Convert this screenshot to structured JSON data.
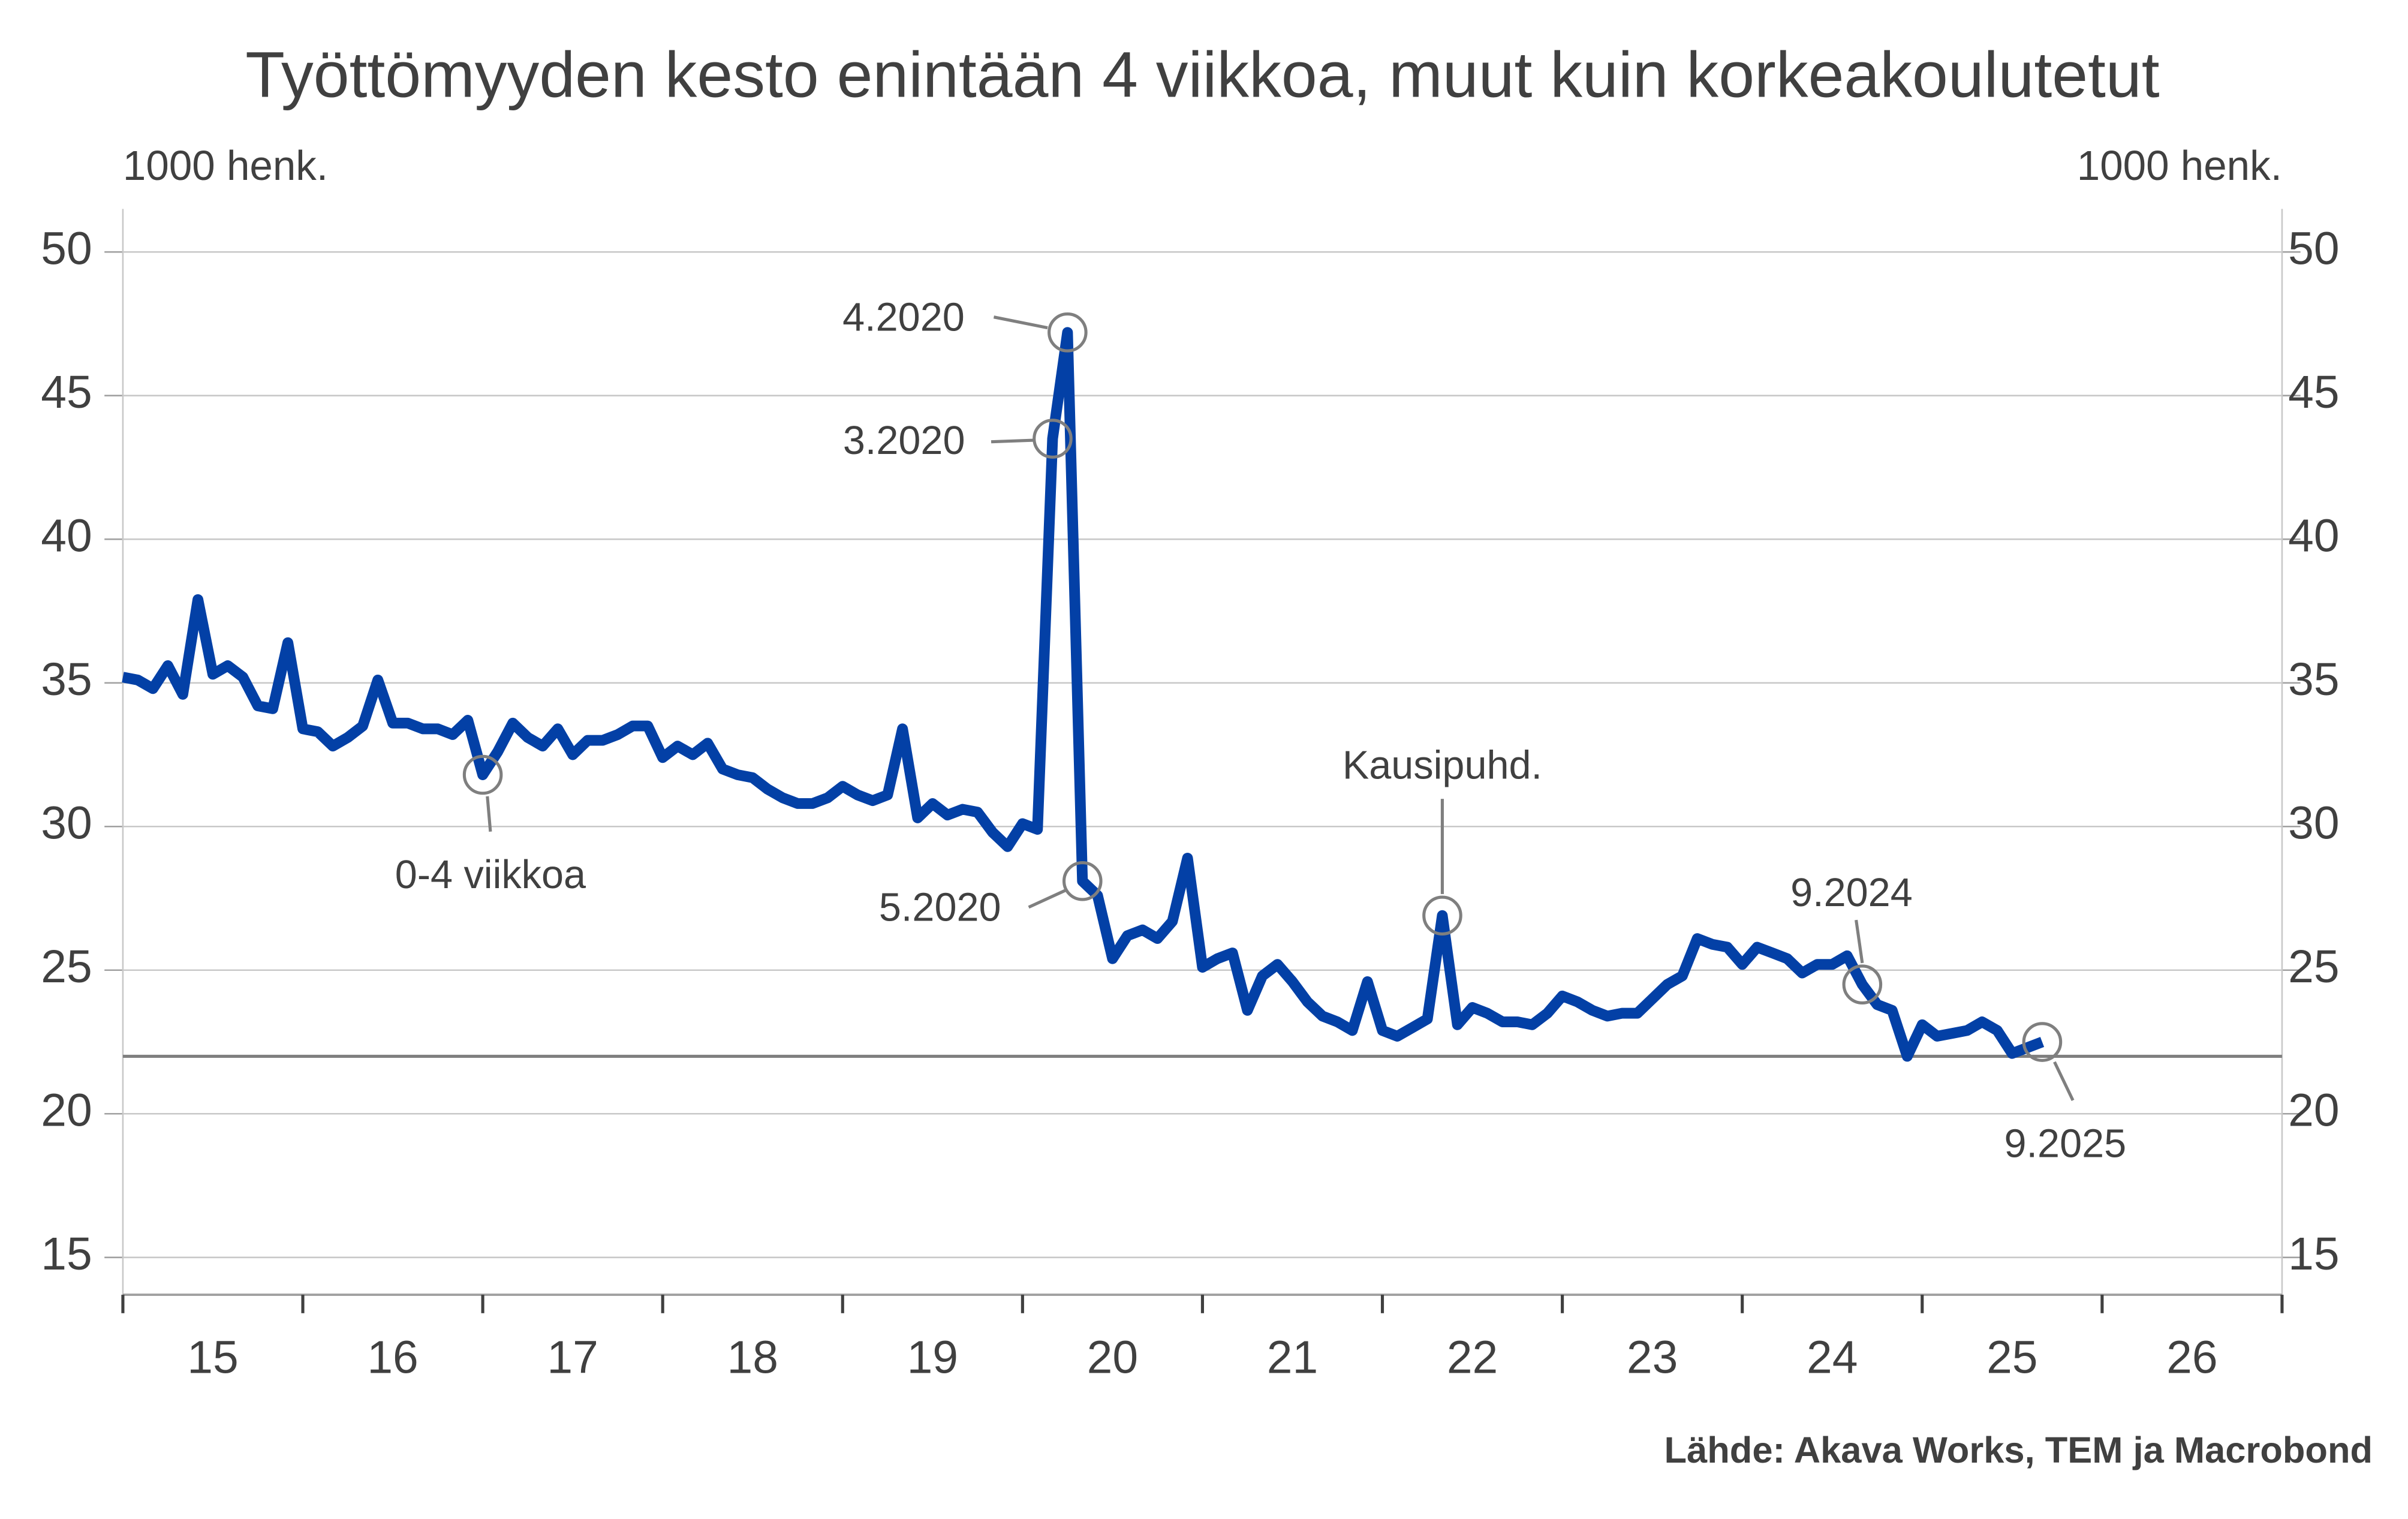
{
  "chart_data": {
    "type": "line",
    "title": "Työttömyyden kesto enintään 4 viikkoa, muut kuin korkeakoulutetut",
    "ylabel": "1000 henk.",
    "y2label": "1000 henk.",
    "source": "Lähde: Akava Works, TEM ja Macrobond",
    "x": [
      2015,
      2015.083,
      2015.167,
      2015.25,
      2015.333,
      2015.417,
      2015.5,
      2015.583,
      2015.667,
      2015.75,
      2015.833,
      2015.917,
      2016,
      2016.083,
      2016.167,
      2016.25,
      2016.333,
      2016.417,
      2016.5,
      2016.583,
      2016.667,
      2016.75,
      2016.833,
      2016.917,
      2017,
      2017.083,
      2017.167,
      2017.25,
      2017.333,
      2017.417,
      2017.5,
      2017.583,
      2017.667,
      2017.75,
      2017.833,
      2017.917,
      2018,
      2018.083,
      2018.167,
      2018.25,
      2018.333,
      2018.417,
      2018.5,
      2018.583,
      2018.667,
      2018.75,
      2018.833,
      2018.917,
      2019,
      2019.083,
      2019.167,
      2019.25,
      2019.333,
      2019.417,
      2019.5,
      2019.583,
      2019.667,
      2019.75,
      2019.833,
      2019.917,
      2020,
      2020.083,
      2020.167,
      2020.25,
      2020.333,
      2020.417,
      2020.5,
      2020.583,
      2020.667,
      2020.75,
      2020.833,
      2020.917,
      2021,
      2021.083,
      2021.167,
      2021.25,
      2021.333,
      2021.417,
      2021.5,
      2021.583,
      2021.667,
      2021.75,
      2021.833,
      2021.917,
      2022,
      2022.083,
      2022.167,
      2022.25,
      2022.333,
      2022.417,
      2022.5,
      2022.583,
      2022.667,
      2022.75,
      2022.833,
      2022.917,
      2023,
      2023.083,
      2023.167,
      2023.25,
      2023.333,
      2023.417,
      2023.5,
      2023.583,
      2023.667,
      2023.75,
      2023.833,
      2023.917,
      2024,
      2024.083,
      2024.167,
      2024.25,
      2024.333,
      2024.417,
      2024.5,
      2024.583,
      2024.667,
      2024.75,
      2024.833,
      2024.917,
      2025,
      2025.083,
      2025.167,
      2025.25,
      2025.333,
      2025.417,
      2025.5,
      2025.583,
      2025.667
    ],
    "series": [
      {
        "name": "0-4 viikkoa",
        "color": "#0340a6",
        "values": [
          35.2,
          35.1,
          34.8,
          35.6,
          34.6,
          37.9,
          35.3,
          35.6,
          35.2,
          34.2,
          34.1,
          36.4,
          33.4,
          33.3,
          32.8,
          33.1,
          33.5,
          35.1,
          33.6,
          33.6,
          33.4,
          33.4,
          33.2,
          33.7,
          31.8,
          32.6,
          33.6,
          33.1,
          32.8,
          33.4,
          32.5,
          33.0,
          33.0,
          33.2,
          33.5,
          33.5,
          32.4,
          32.8,
          32.5,
          32.9,
          32.0,
          31.8,
          31.7,
          31.3,
          31.0,
          30.8,
          30.8,
          31.0,
          31.4,
          31.1,
          30.9,
          31.1,
          33.4,
          30.3,
          30.8,
          30.4,
          30.6,
          30.5,
          29.8,
          29.3,
          30.1,
          29.9,
          43.5,
          47.2,
          28.1,
          27.6,
          25.4,
          26.2,
          26.4,
          26.1,
          26.7,
          28.9,
          25.1,
          25.4,
          25.6,
          23.6,
          24.8,
          25.2,
          24.6,
          23.9,
          23.4,
          23.2,
          22.9,
          24.6,
          22.9,
          22.7,
          23.0,
          23.3,
          26.9,
          23.1,
          23.7,
          23.5,
          23.2,
          23.2,
          23.1,
          23.5,
          24.1,
          23.9,
          23.6,
          23.4,
          23.5,
          23.5,
          24.0,
          24.5,
          24.8,
          26.1,
          25.9,
          25.8,
          25.2,
          25.8,
          25.6,
          25.4,
          24.9,
          25.2,
          25.2,
          25.5,
          24.5,
          23.8,
          23.6,
          22.0,
          23.1,
          22.7,
          22.8,
          22.9,
          23.2,
          22.9,
          22.1,
          22.3,
          22.5
        ]
      }
    ],
    "xlim": [
      2015,
      2027
    ],
    "xticks": [
      {
        "value": 2015.5,
        "label": "15"
      },
      {
        "value": 2016.5,
        "label": "16"
      },
      {
        "value": 2017.5,
        "label": "17"
      },
      {
        "value": 2018.5,
        "label": "18"
      },
      {
        "value": 2019.5,
        "label": "19"
      },
      {
        "value": 2020.5,
        "label": "20"
      },
      {
        "value": 2021.5,
        "label": "21"
      },
      {
        "value": 2022.5,
        "label": "22"
      },
      {
        "value": 2023.5,
        "label": "23"
      },
      {
        "value": 2024.5,
        "label": "24"
      },
      {
        "value": 2025.5,
        "label": "25"
      },
      {
        "value": 2026.5,
        "label": "26"
      }
    ],
    "xtick_marks": [
      2015,
      2016,
      2017,
      2018,
      2019,
      2020,
      2021,
      2022,
      2023,
      2024,
      2025,
      2026,
      2027
    ],
    "ylim": [
      13.7,
      51.5
    ],
    "yticks": [
      15,
      20,
      25,
      30,
      35,
      40,
      45,
      50
    ],
    "y2lim": [
      13.7,
      51.5
    ],
    "y2ticks": [
      15,
      20,
      25,
      30,
      35,
      40,
      45,
      50
    ],
    "grid": true,
    "hline": 22,
    "annotations": [
      {
        "label": "4.2020",
        "x": 2020.25,
        "y": 47.2
      },
      {
        "label": "3.2020",
        "x": 2020.167,
        "y": 43.5
      },
      {
        "label": "5.2020",
        "x": 2020.333,
        "y": 28.1
      },
      {
        "label": "Kausipuhd.",
        "x": 2022.333,
        "y": 26.9
      },
      {
        "label": "9.2024",
        "x": 2024.667,
        "y": 24.5
      },
      {
        "label": "9.2025",
        "x": 2025.667,
        "y": 22.5
      }
    ]
  }
}
